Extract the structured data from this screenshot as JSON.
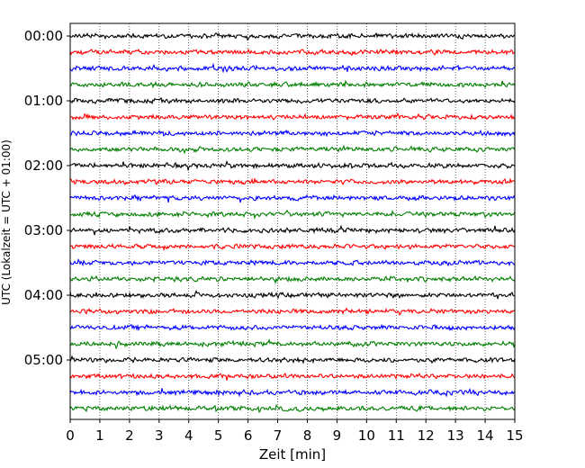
{
  "chart_data": {
    "type": "line",
    "title": "",
    "xlabel": "Zeit  [min]",
    "ylabel": "UTC (Lokalzeit = UTC + 01:00)",
    "xlim": [
      0,
      15
    ],
    "x_ticks": [
      0,
      1,
      2,
      3,
      4,
      5,
      6,
      7,
      8,
      9,
      10,
      11,
      12,
      13,
      14,
      15
    ],
    "y_tick_labels": [
      "00:00",
      "01:00",
      "02:00",
      "03:00",
      "04:00",
      "05:00"
    ],
    "grid": "vertical dotted",
    "trace_colors": [
      "#000000",
      "#ff0000",
      "#0000ff",
      "#007f00"
    ],
    "rows_per_hour": 4,
    "trace_minutes": 15,
    "traces": [
      {
        "start": "00:00",
        "color": "#000000"
      },
      {
        "start": "00:15",
        "color": "#ff0000"
      },
      {
        "start": "00:30",
        "color": "#0000ff"
      },
      {
        "start": "00:45",
        "color": "#007f00"
      },
      {
        "start": "01:00",
        "color": "#000000"
      },
      {
        "start": "01:15",
        "color": "#ff0000"
      },
      {
        "start": "01:30",
        "color": "#0000ff"
      },
      {
        "start": "01:45",
        "color": "#007f00"
      },
      {
        "start": "02:00",
        "color": "#000000"
      },
      {
        "start": "02:15",
        "color": "#ff0000"
      },
      {
        "start": "02:30",
        "color": "#0000ff"
      },
      {
        "start": "02:45",
        "color": "#007f00"
      },
      {
        "start": "03:00",
        "color": "#000000"
      },
      {
        "start": "03:15",
        "color": "#ff0000"
      },
      {
        "start": "03:30",
        "color": "#0000ff"
      },
      {
        "start": "03:45",
        "color": "#007f00"
      },
      {
        "start": "04:00",
        "color": "#000000"
      },
      {
        "start": "04:15",
        "color": "#ff0000"
      },
      {
        "start": "04:30",
        "color": "#0000ff"
      },
      {
        "start": "04:45",
        "color": "#007f00"
      },
      {
        "start": "05:00",
        "color": "#000000"
      },
      {
        "start": "05:15",
        "color": "#ff0000"
      },
      {
        "start": "05:30",
        "color": "#0000ff"
      },
      {
        "start": "05:45",
        "color": "#007f00"
      }
    ]
  }
}
